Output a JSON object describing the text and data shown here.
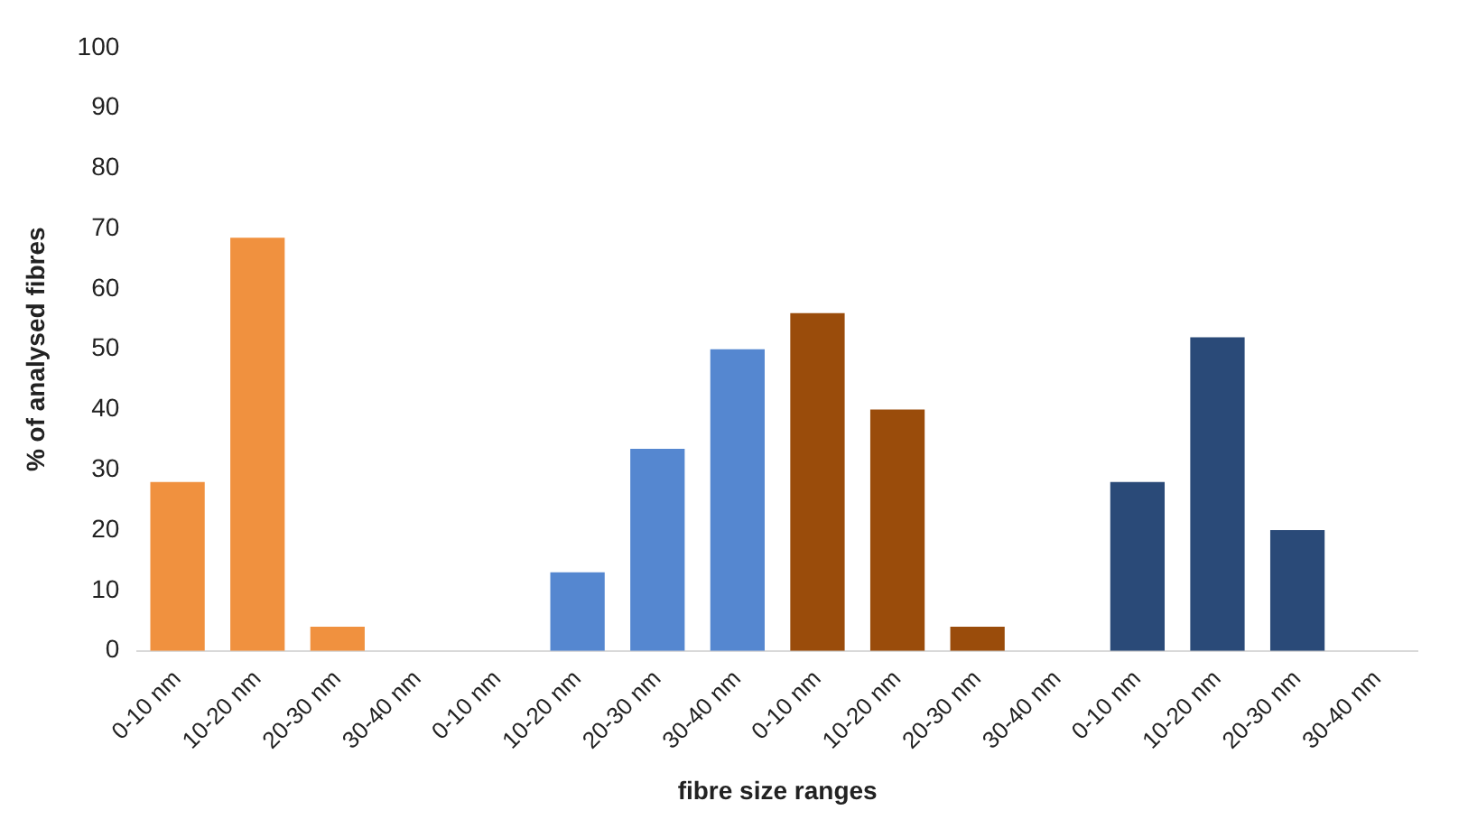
{
  "chart_data": {
    "type": "bar",
    "xlabel": "fibre size ranges",
    "ylabel": "% of analysed fibres",
    "categories": [
      "0-10 nm",
      "10-20 nm",
      "20-30 nm",
      "30-40 nm",
      "0-10 nm",
      "10-20 nm",
      "20-30 nm",
      "30-40 nm",
      "0-10 nm",
      "10-20 nm",
      "20-30 nm",
      "30-40 nm",
      "0-10 nm",
      "10-20 nm",
      "20-30 nm",
      "30-40 nm"
    ],
    "values": [
      28,
      68.5,
      4,
      0,
      0,
      13,
      33.5,
      50,
      56,
      40,
      4,
      0,
      28,
      52,
      20,
      0
    ],
    "colors": [
      "#f0913f",
      "#f0913f",
      "#f0913f",
      "#f0913f",
      "#5587d0",
      "#5587d0",
      "#5587d0",
      "#5587d0",
      "#9a4c0b",
      "#9a4c0b",
      "#9a4c0b",
      "#9a4c0b",
      "#2a4a78",
      "#2a4a78",
      "#2a4a78",
      "#2a4a78"
    ],
    "ylim": [
      0,
      100
    ],
    "yticks": [
      0,
      10,
      20,
      30,
      40,
      50,
      60,
      70,
      80,
      90,
      100
    ],
    "grid": false,
    "legend": false
  }
}
